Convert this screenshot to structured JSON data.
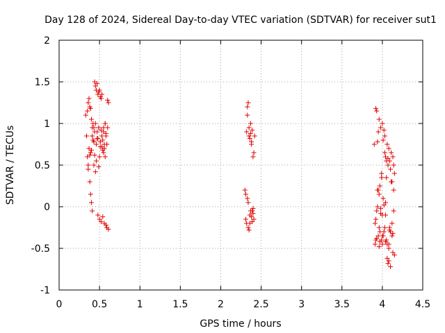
{
  "chart_data": {
    "type": "scatter",
    "title": "Day 128 of 2024, Sidereal Day-to-day VTEC variation (SDTVAR) for receiver sut1",
    "xlabel": "GPS time / hours",
    "ylabel": "SDTVAR / TECUs",
    "xlim": [
      0,
      4.5
    ],
    "ylim": [
      -1,
      2
    ],
    "xticks": [
      0,
      0.5,
      1,
      1.5,
      2,
      2.5,
      3,
      3.5,
      4,
      4.5
    ],
    "xtick_labels": [
      "0",
      "0.5",
      "1",
      "1.5",
      "2",
      "2.5",
      "3",
      "3.5",
      "4",
      "4.5"
    ],
    "yticks": [
      -1,
      -0.5,
      0,
      0.5,
      1,
      1.5,
      2
    ],
    "ytick_labels": [
      "-1",
      "-0.5",
      "0",
      "0.5",
      "1",
      "1.5",
      "2"
    ],
    "grid": true,
    "marker": "+",
    "color": "#e00000",
    "series": [
      {
        "name": "sut1",
        "x": [
          0.33,
          0.34,
          0.35,
          0.35,
          0.36,
          0.36,
          0.37,
          0.37,
          0.38,
          0.38,
          0.39,
          0.39,
          0.4,
          0.4,
          0.41,
          0.41,
          0.42,
          0.42,
          0.43,
          0.43,
          0.44,
          0.44,
          0.45,
          0.45,
          0.46,
          0.46,
          0.47,
          0.47,
          0.48,
          0.48,
          0.49,
          0.49,
          0.5,
          0.5,
          0.51,
          0.51,
          0.52,
          0.52,
          0.53,
          0.53,
          0.54,
          0.54,
          0.55,
          0.55,
          0.56,
          0.56,
          0.57,
          0.57,
          0.58,
          0.58,
          0.59,
          0.59,
          0.6,
          0.6,
          0.61,
          0.61,
          0.36,
          0.38,
          0.4,
          0.42,
          0.44,
          0.46,
          0.48,
          0.5,
          0.52,
          0.54,
          0.56,
          0.58,
          0.37,
          0.41,
          0.45,
          0.49,
          0.53,
          0.57,
          0.39,
          0.43,
          0.47,
          0.51,
          0.55,
          0.59,
          2.3,
          2.31,
          2.32,
          2.32,
          2.33,
          2.33,
          2.34,
          2.34,
          2.35,
          2.35,
          2.36,
          2.36,
          2.37,
          2.37,
          2.38,
          2.38,
          2.39,
          2.39,
          2.4,
          2.4,
          2.41,
          2.41,
          2.42,
          2.31,
          2.33,
          2.35,
          2.37,
          2.39,
          2.34,
          2.36,
          2.38,
          2.4,
          3.9,
          3.91,
          3.92,
          3.92,
          3.93,
          3.93,
          3.94,
          3.94,
          3.95,
          3.95,
          3.96,
          3.96,
          3.97,
          3.97,
          3.98,
          3.98,
          3.99,
          3.99,
          4.0,
          4.0,
          4.01,
          4.01,
          4.02,
          4.02,
          4.03,
          4.03,
          4.04,
          4.04,
          4.05,
          4.05,
          4.06,
          4.06,
          4.07,
          4.07,
          4.08,
          4.08,
          4.09,
          4.09,
          4.1,
          4.1,
          4.11,
          4.11,
          4.12,
          4.12,
          4.13,
          4.13,
          4.14,
          4.14,
          4.15,
          4.15,
          3.92,
          3.94,
          3.96,
          3.98,
          4.0,
          4.02,
          4.04,
          4.06,
          4.08,
          4.1,
          4.12,
          4.14,
          3.93,
          3.97,
          4.01,
          4.05,
          4.09,
          4.13,
          3.95,
          3.99,
          4.03,
          4.07,
          4.11,
          3.91,
          3.96,
          4.0,
          4.04,
          4.08
        ],
        "y": [
          1.1,
          0.85,
          1.15,
          0.6,
          1.25,
          0.45,
          1.3,
          0.7,
          1.2,
          0.3,
          1.18,
          0.15,
          1.05,
          0.05,
          0.95,
          -0.05,
          1.0,
          0.8,
          0.78,
          0.5,
          1.5,
          0.62,
          1.45,
          0.42,
          1.4,
          0.75,
          1.48,
          0.9,
          1.35,
          -0.1,
          1.38,
          0.95,
          1.4,
          -0.15,
          1.32,
          0.72,
          1.3,
          -0.18,
          1.35,
          0.85,
          0.8,
          -0.12,
          0.9,
          0.65,
          0.7,
          -0.2,
          1.0,
          0.6,
          0.85,
          -0.22,
          0.75,
          -0.25,
          1.28,
          0.95,
          1.25,
          -0.27,
          0.5,
          0.62,
          0.68,
          0.8,
          0.9,
          0.55,
          0.82,
          0.6,
          0.92,
          0.68,
          0.75,
          0.88,
          0.7,
          0.85,
          1.0,
          0.48,
          0.72,
          1.0,
          0.65,
          0.95,
          0.82,
          0.78,
          0.95,
          0.75,
          0.2,
          -0.15,
          0.9,
          -0.2,
          1.2,
          0.1,
          1.25,
          -0.25,
          0.85,
          -0.28,
          0.82,
          -0.1,
          1.0,
          -0.05,
          0.78,
          -0.12,
          0.92,
          -0.18,
          0.6,
          -0.08,
          0.65,
          -0.15,
          0.85,
          0.15,
          1.1,
          0.95,
          0.88,
          -0.05,
          0.05,
          -0.2,
          0.75,
          -0.02,
          0.75,
          -0.45,
          1.18,
          -0.4,
          1.15,
          -0.05,
          0.78,
          0.2,
          -0.35,
          0.9,
          -0.48,
          1.05,
          0.25,
          -0.42,
          0.95,
          -0.08,
          -0.4,
          0.35,
          1.0,
          -0.45,
          0.8,
          0.1,
          0.92,
          -0.3,
          0.85,
          -0.25,
          0.6,
          -0.1,
          0.55,
          0.35,
          0.75,
          -0.62,
          0.5,
          -0.68,
          0.7,
          -0.65,
          0.55,
          -0.28,
          0.45,
          -0.72,
          0.65,
          0.3,
          0.3,
          -0.35,
          0.6,
          -0.55,
          0.5,
          0.2,
          0.4,
          -0.58,
          -0.15,
          0.0,
          0.15,
          -0.02,
          -0.1,
          0.02,
          0.05,
          -0.45,
          -0.5,
          -0.3,
          -0.2,
          -0.05,
          -0.38,
          -0.3,
          -0.35,
          -0.4,
          -0.25,
          -0.32,
          0.2,
          0.4,
          0.65,
          0.58,
          0.3,
          -0.2,
          -0.25,
          -0.35,
          -0.42,
          -0.45
        ]
      }
    ]
  }
}
